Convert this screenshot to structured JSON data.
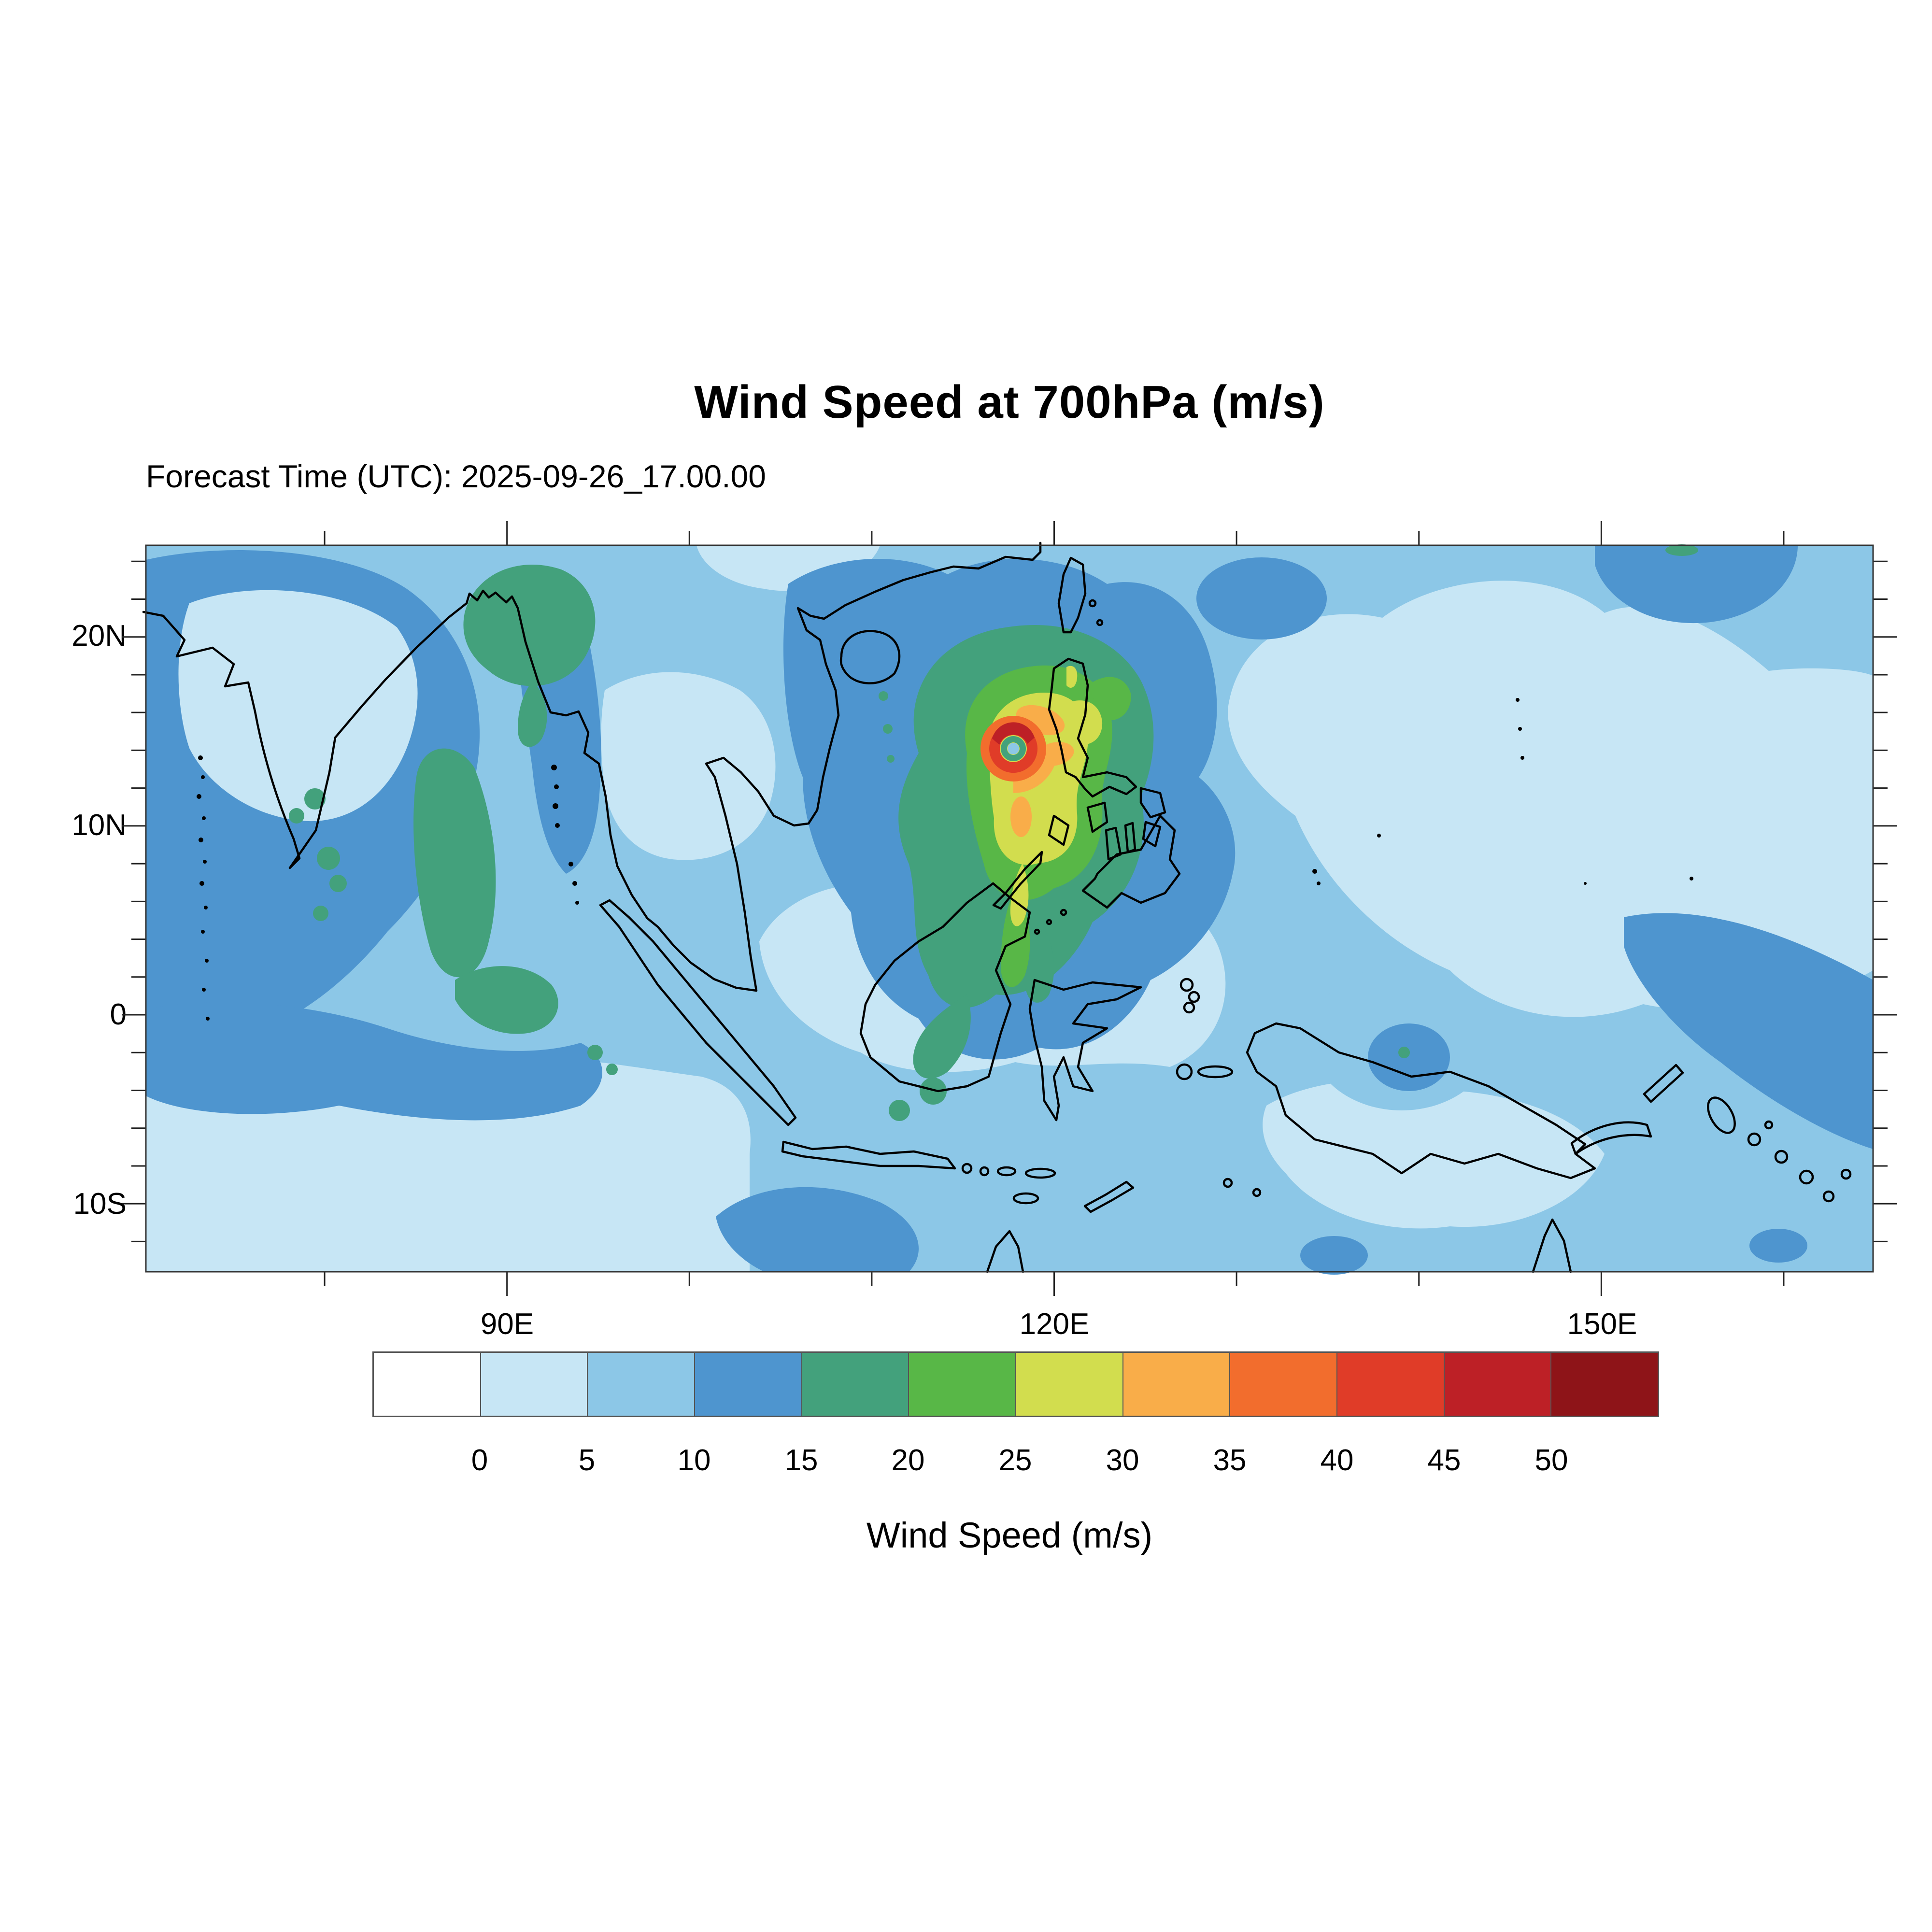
{
  "title": "Wind Speed at 700hPa (m/s)",
  "subtitle": "Forecast Time (UTC): 2025-09-26_17.00.00",
  "map": {
    "domain": {
      "lon_min": 70.2,
      "lon_max": 164.9,
      "lat_min": -13.6,
      "lat_max": 24.85
    },
    "lat_ticks": [
      {
        "label": "20N",
        "lat": 20
      },
      {
        "label": "10N",
        "lat": 10
      },
      {
        "label": "0",
        "lat": 0
      },
      {
        "label": "10S",
        "lat": -10
      }
    ],
    "lon_ticks": [
      {
        "label": "90E",
        "lon": 90
      },
      {
        "label": "120E",
        "lon": 120
      },
      {
        "label": "150E",
        "lon": 150
      }
    ],
    "minor_ticks": {
      "lon_start": 80,
      "lon_end": 160,
      "lon_step": 10,
      "lat_start": -12,
      "lat_end": 24,
      "lat_step": 2
    }
  },
  "colorbar": {
    "title": "Wind Speed (m/s)",
    "tick_labels": [
      "0",
      "5",
      "10",
      "15",
      "20",
      "25",
      "30",
      "35",
      "40",
      "45",
      "50"
    ],
    "cells": [
      {
        "range": "<0",
        "color": "#ffffff"
      },
      {
        "range": "0-5",
        "color": "#c7e6f5"
      },
      {
        "range": "5-10",
        "color": "#8cc7e7"
      },
      {
        "range": "10-15",
        "color": "#4e95cf"
      },
      {
        "range": "15-20",
        "color": "#43a17c"
      },
      {
        "range": "20-25",
        "color": "#58b747"
      },
      {
        "range": "25-30",
        "color": "#d2dd4e"
      },
      {
        "range": "30-35",
        "color": "#f9ad49"
      },
      {
        "range": "35-40",
        "color": "#f26d2d"
      },
      {
        "range": "40-45",
        "color": "#e03c28"
      },
      {
        "range": "45-50",
        "color": "#bd2026"
      },
      {
        "range": ">50",
        "color": "#8e1418"
      }
    ]
  },
  "chart_data": {
    "type": "heatmap",
    "subtype": "filled-contour-map",
    "title": "Wind Speed at 700hPa (m/s)",
    "forecast_time_utc": "2025-09-26_17.00.00",
    "variable": "Wind Speed",
    "pressure_level": "700hPa",
    "units": "m/s",
    "xlabel": "",
    "ylabel": "",
    "lon_range_deg_e": [
      70.2,
      164.9
    ],
    "lat_range_deg_n": [
      -13.6,
      24.85
    ],
    "lon_tick_labels": [
      "90E",
      "120E",
      "150E"
    ],
    "lat_tick_labels": [
      "20N",
      "10N",
      "0",
      "10S"
    ],
    "contour_levels_ms": [
      0,
      5,
      10,
      15,
      20,
      25,
      30,
      35,
      40,
      45,
      50
    ],
    "palette_hex": [
      "#ffffff",
      "#c7e6f5",
      "#8cc7e7",
      "#4e95cf",
      "#43a17c",
      "#58b747",
      "#d2dd4e",
      "#f9ad49",
      "#f26d2d",
      "#e03c28",
      "#bd2026",
      "#8e1418"
    ],
    "legend_position": "bottom horizontal colorbar",
    "grid": "off",
    "features": {
      "tropical_cyclone": {
        "location": "South China Sea, just west of Luzon, Philippines",
        "center_lon_e": 117.9,
        "center_lat_n": 14.1,
        "peak_wind_bin_ms": "45-50",
        "eyewall_bins_ms": [
          "30-35",
          "35-40",
          "40-45",
          "45-50"
        ],
        "eye_wind_bin_ms": "5-10",
        "outer_circulation_bin_ms": "15-30 extending ~112-123E, 5-20N"
      },
      "high_wind_regions_10_15_ms": [
        "northern and central India and western Bay of Bengal",
        "equatorial Indian Ocean band (70-93E, 0-6N)",
        "northern South China Sea surrounding the typhoon (105-127E, 0-23N)",
        "northwest Pacific wedge near 143-155E, 22-25N",
        "southwest Pacific wedge near 150-165E, 0-7S",
        "small patches near 95-100E 12-14S and 138E 3-6S"
      ],
      "moderate_wind_regions_15_20_ms": [
        "Bangladesh / NE Bay of Bengal",
        "streaks across southern Bay of Bengal toward Sri Lanka and the equator",
        "ring around typhoon core"
      ],
      "background_bins_ms": "0-5 over central Pacific, Maritime Continent and southern Indian Ocean; 5-10 over most remaining ocean"
    }
  }
}
